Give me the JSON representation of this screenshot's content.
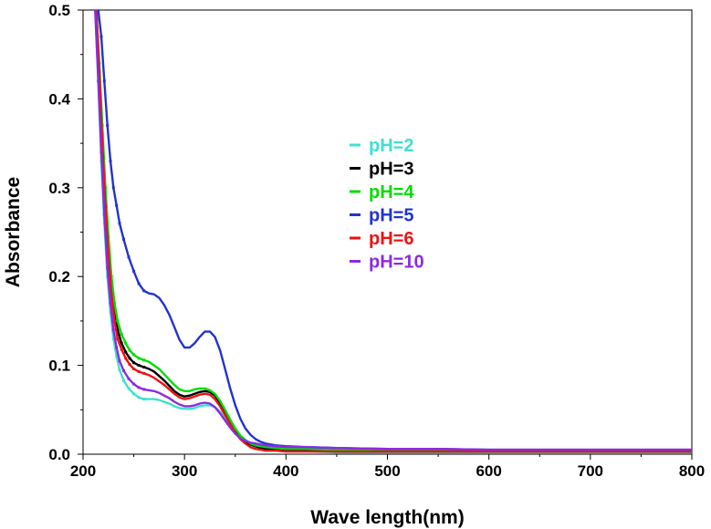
{
  "chart_data": {
    "type": "line",
    "title": "",
    "xlabel": "Wave length(nm)",
    "ylabel": "Absorbance",
    "xlim": [
      200,
      800
    ],
    "ylim": [
      0.0,
      0.5
    ],
    "x_ticks": [
      "200",
      "300",
      "400",
      "500",
      "600",
      "700",
      "800"
    ],
    "y_ticks": [
      "0.0",
      "0.1",
      "0.2",
      "0.3",
      "0.4",
      "0.5"
    ],
    "grid": false,
    "legend_position": "center",
    "series": [
      {
        "name": "pH=2",
        "color": "#40e0d0",
        "x": [
          212,
          215,
          218,
          221,
          224,
          227,
          230,
          233,
          236,
          240,
          245,
          250,
          255,
          260,
          265,
          270,
          275,
          280,
          285,
          290,
          295,
          300,
          305,
          310,
          315,
          320,
          325,
          330,
          335,
          340,
          345,
          350,
          355,
          360,
          365,
          370,
          375,
          380,
          390,
          400,
          420,
          450,
          500,
          550,
          600,
          650,
          700,
          750,
          800
        ],
        "y": [
          0.5,
          0.42,
          0.33,
          0.26,
          0.2,
          0.16,
          0.13,
          0.11,
          0.095,
          0.083,
          0.074,
          0.068,
          0.064,
          0.062,
          0.062,
          0.062,
          0.061,
          0.059,
          0.057,
          0.054,
          0.052,
          0.051,
          0.051,
          0.052,
          0.054,
          0.055,
          0.055,
          0.053,
          0.048,
          0.04,
          0.032,
          0.024,
          0.018,
          0.013,
          0.01,
          0.008,
          0.006,
          0.005,
          0.004,
          0.003,
          0.003,
          0.002,
          0.002,
          0.002,
          0.002,
          0.002,
          0.002,
          0.002,
          0.002
        ]
      },
      {
        "name": "pH=3",
        "color": "#000000",
        "x": [
          213,
          216,
          219,
          222,
          225,
          228,
          231,
          234,
          238,
          242,
          246,
          250,
          255,
          260,
          265,
          270,
          275,
          280,
          285,
          290,
          295,
          300,
          305,
          310,
          315,
          320,
          325,
          330,
          335,
          340,
          345,
          350,
          355,
          360,
          365,
          370,
          375,
          380,
          390,
          400,
          420,
          450,
          500,
          550,
          600,
          650,
          700,
          750,
          800
        ],
        "y": [
          0.5,
          0.43,
          0.36,
          0.29,
          0.235,
          0.19,
          0.16,
          0.14,
          0.125,
          0.115,
          0.108,
          0.103,
          0.1,
          0.098,
          0.096,
          0.093,
          0.088,
          0.083,
          0.077,
          0.071,
          0.067,
          0.065,
          0.066,
          0.068,
          0.07,
          0.071,
          0.07,
          0.066,
          0.058,
          0.048,
          0.037,
          0.027,
          0.02,
          0.014,
          0.011,
          0.009,
          0.007,
          0.006,
          0.005,
          0.004,
          0.004,
          0.003,
          0.003,
          0.003,
          0.003,
          0.003,
          0.003,
          0.003,
          0.003
        ]
      },
      {
        "name": "pH=4",
        "color": "#00dd00",
        "x": [
          213,
          216,
          219,
          222,
          225,
          228,
          231,
          234,
          238,
          242,
          246,
          250,
          255,
          260,
          265,
          270,
          275,
          280,
          285,
          290,
          295,
          300,
          305,
          310,
          315,
          320,
          325,
          330,
          335,
          340,
          345,
          350,
          355,
          360,
          365,
          370,
          375,
          380,
          390,
          400,
          420,
          450,
          500,
          550,
          600,
          650,
          700,
          750,
          800
        ],
        "y": [
          0.5,
          0.44,
          0.37,
          0.3,
          0.245,
          0.2,
          0.17,
          0.15,
          0.135,
          0.125,
          0.117,
          0.112,
          0.108,
          0.106,
          0.104,
          0.1,
          0.096,
          0.09,
          0.084,
          0.078,
          0.073,
          0.071,
          0.071,
          0.073,
          0.074,
          0.074,
          0.072,
          0.068,
          0.06,
          0.05,
          0.039,
          0.029,
          0.021,
          0.016,
          0.012,
          0.01,
          0.009,
          0.008,
          0.007,
          0.006,
          0.006,
          0.005,
          0.005,
          0.004,
          0.004,
          0.004,
          0.004,
          0.004,
          0.004
        ]
      },
      {
        "name": "pH=5",
        "color": "#2233cc",
        "x": [
          215,
          218,
          221,
          224,
          227,
          230,
          233,
          236,
          240,
          245,
          250,
          255,
          260,
          265,
          270,
          275,
          280,
          285,
          290,
          295,
          300,
          305,
          310,
          315,
          320,
          325,
          330,
          335,
          340,
          345,
          350,
          355,
          360,
          365,
          370,
          375,
          380,
          390,
          400,
          420,
          450,
          500,
          550,
          600,
          650,
          700,
          750,
          800
        ],
        "y": [
          0.5,
          0.47,
          0.42,
          0.37,
          0.33,
          0.3,
          0.28,
          0.26,
          0.242,
          0.222,
          0.206,
          0.192,
          0.184,
          0.181,
          0.18,
          0.176,
          0.168,
          0.157,
          0.143,
          0.129,
          0.12,
          0.12,
          0.125,
          0.132,
          0.138,
          0.138,
          0.132,
          0.117,
          0.096,
          0.074,
          0.055,
          0.04,
          0.029,
          0.022,
          0.017,
          0.014,
          0.012,
          0.01,
          0.009,
          0.008,
          0.007,
          0.006,
          0.006,
          0.005,
          0.005,
          0.005,
          0.005,
          0.005
        ]
      },
      {
        "name": "pH=6",
        "color": "#ee1111",
        "x": [
          213,
          216,
          219,
          222,
          225,
          228,
          231,
          234,
          238,
          242,
          246,
          250,
          255,
          260,
          265,
          270,
          275,
          280,
          285,
          290,
          295,
          300,
          305,
          310,
          315,
          320,
          325,
          330,
          335,
          340,
          345,
          350,
          355,
          360,
          365,
          370,
          375,
          380,
          390,
          400,
          420,
          450,
          500,
          550,
          600,
          650,
          700,
          750,
          800
        ],
        "y": [
          0.5,
          0.43,
          0.35,
          0.28,
          0.225,
          0.18,
          0.15,
          0.13,
          0.118,
          0.108,
          0.101,
          0.096,
          0.093,
          0.091,
          0.089,
          0.086,
          0.082,
          0.078,
          0.073,
          0.068,
          0.064,
          0.062,
          0.063,
          0.065,
          0.067,
          0.068,
          0.067,
          0.062,
          0.054,
          0.044,
          0.034,
          0.024,
          0.017,
          0.012,
          0.008,
          0.006,
          0.005,
          0.004,
          0.004,
          0.003,
          0.003,
          0.003,
          0.003,
          0.003,
          0.003,
          0.003,
          0.003,
          0.003,
          0.003
        ]
      },
      {
        "name": "pH=10",
        "color": "#8a2be2",
        "x": [
          212,
          215,
          218,
          221,
          224,
          227,
          230,
          233,
          236,
          240,
          245,
          250,
          255,
          260,
          265,
          270,
          275,
          280,
          285,
          290,
          295,
          300,
          305,
          310,
          315,
          320,
          325,
          330,
          335,
          340,
          345,
          350,
          355,
          360,
          365,
          370,
          375,
          380,
          390,
          400,
          420,
          450,
          500,
          550,
          600,
          650,
          700,
          750,
          800
        ],
        "y": [
          0.5,
          0.42,
          0.34,
          0.27,
          0.21,
          0.17,
          0.14,
          0.12,
          0.105,
          0.094,
          0.085,
          0.079,
          0.075,
          0.073,
          0.072,
          0.071,
          0.069,
          0.066,
          0.063,
          0.059,
          0.056,
          0.054,
          0.054,
          0.055,
          0.057,
          0.058,
          0.057,
          0.053,
          0.046,
          0.038,
          0.03,
          0.023,
          0.018,
          0.015,
          0.013,
          0.012,
          0.011,
          0.01,
          0.009,
          0.008,
          0.008,
          0.007,
          0.006,
          0.006,
          0.005,
          0.005,
          0.005,
          0.005,
          0.005
        ]
      }
    ]
  }
}
